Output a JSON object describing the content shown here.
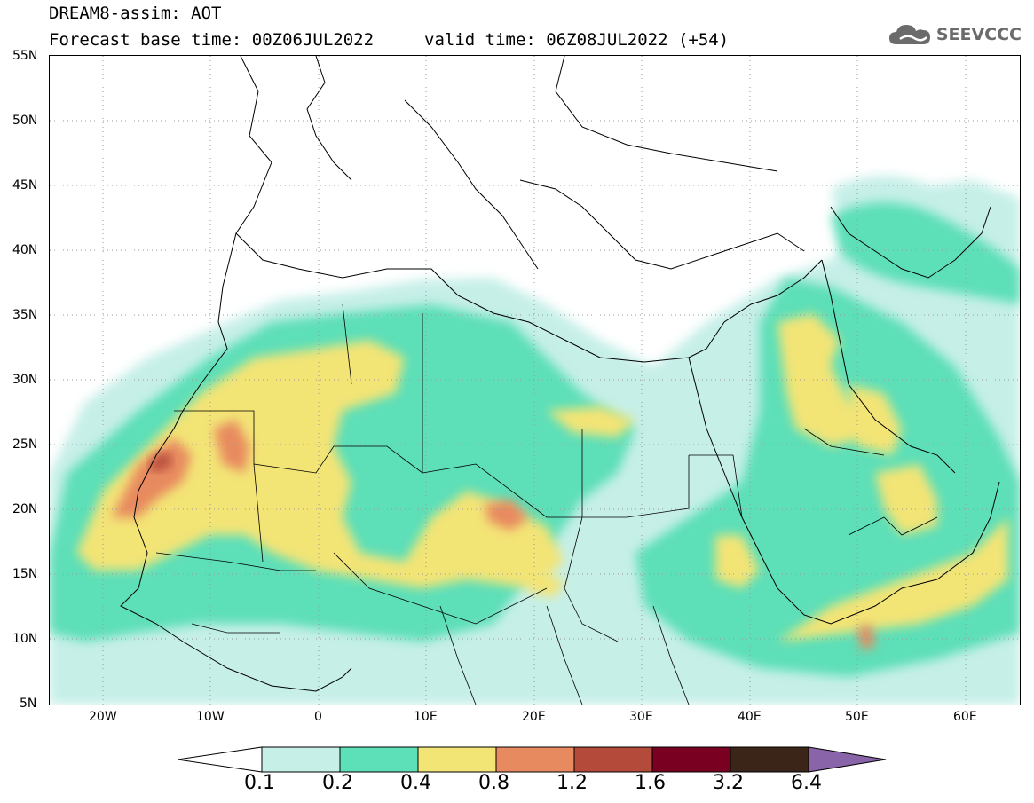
{
  "header": {
    "line1": "DREAM8-assim: AOT",
    "line2": "Forecast base time: 00Z06JUL2022",
    "valid": "valid time: 06Z08JUL2022 (+54)"
  },
  "logo": {
    "text": "SEEVCCC",
    "icon": "cloud-logo-icon"
  },
  "map": {
    "lat_labels": [
      "55N",
      "50N",
      "45N",
      "40N",
      "35N",
      "30N",
      "25N",
      "20N",
      "15N",
      "10N",
      "5N"
    ],
    "lon_labels": [
      "20W",
      "10W",
      "0",
      "10E",
      "20E",
      "30E",
      "40E",
      "50E",
      "60E"
    ],
    "extent": {
      "lon": [
        -25,
        65
      ],
      "lat": [
        5,
        55
      ]
    }
  },
  "colorbar": {
    "labels": [
      "0.1",
      "0.2",
      "0.4",
      "0.8",
      "1.2",
      "1.6",
      "3.2",
      "6.4"
    ],
    "colors": [
      "#ffffff",
      "#c6efe8",
      "#5ddfb8",
      "#f3e476",
      "#e88a5f",
      "#b44a3a",
      "#7a0021",
      "#3b2418",
      "#8a64a8"
    ]
  }
}
